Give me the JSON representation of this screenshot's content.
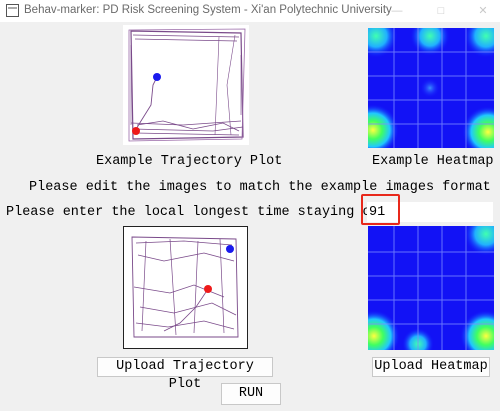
{
  "window": {
    "title": "Behav-marker: PD Risk Screening System - Xi'an Polytechnic University",
    "minimize_icon": "minimize-icon",
    "maximize_icon": "maximize-icon",
    "close_icon": "close-icon"
  },
  "examples": {
    "trajectory_caption": "Example Trajectory Plot",
    "heatmap_caption": "Example Heatmap"
  },
  "instructions": {
    "format_note": "Please edit the images to match the example images format",
    "time_prompt": "Please enter the local longest time staying on"
  },
  "time_input": {
    "value": "91"
  },
  "buttons": {
    "upload_trajectory": "Upload Trajectory Plot",
    "upload_heatmap": "Upload Heatmap",
    "run": "RUN"
  },
  "colors": {
    "highlight_border": "#e8281b",
    "heatmap_base": "#1010ff",
    "trajectory_line": "#7a4a8a"
  }
}
